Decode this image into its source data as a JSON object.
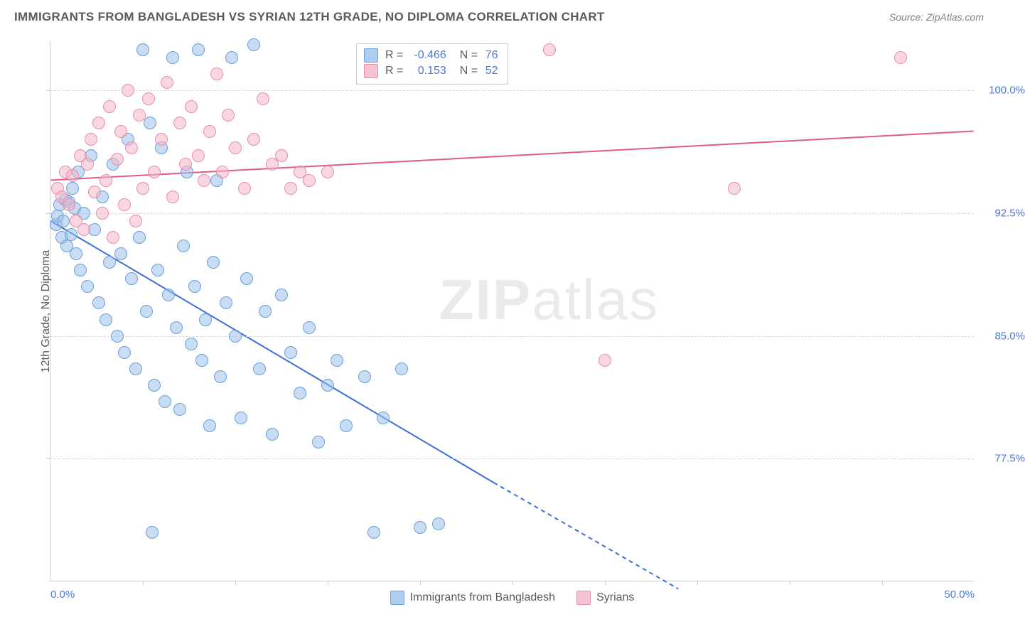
{
  "header": {
    "title": "IMMIGRANTS FROM BANGLADESH VS SYRIAN 12TH GRADE, NO DIPLOMA CORRELATION CHART",
    "source_prefix": "Source: ",
    "source": "ZipAtlas.com"
  },
  "chart": {
    "type": "scatter",
    "y_axis_label": "12th Grade, No Diploma",
    "watermark": "ZIPatlas",
    "xlim": [
      0,
      50
    ],
    "ylim": [
      70,
      103
    ],
    "xticks": [
      0,
      25,
      50
    ],
    "xtick_labels": [
      "0.0%",
      "",
      "50.0%"
    ],
    "xtick_minor": [
      5,
      10,
      15,
      20,
      25,
      30,
      35,
      40,
      45
    ],
    "yticks": [
      77.5,
      85.0,
      92.5,
      100.0
    ],
    "ytick_labels": [
      "77.5%",
      "85.0%",
      "92.5%",
      "100.0%"
    ],
    "background_color": "#ffffff",
    "grid_color": "#d8d8d8",
    "series": [
      {
        "name": "Immigrants from Bangladesh",
        "color_fill": "rgba(155,192,235,0.55)",
        "color_stroke": "#6a9fd8",
        "class": "blue",
        "R": -0.466,
        "N": 76,
        "trend": {
          "x1": 0,
          "y1": 92.0,
          "x2": 24,
          "y2": 76.0,
          "x2_dash": 34,
          "y2_dash": 69.5,
          "color": "#3a6fd8",
          "width": 2
        },
        "points": [
          [
            0.3,
            91.8
          ],
          [
            0.4,
            92.3
          ],
          [
            0.5,
            93.0
          ],
          [
            0.6,
            91.0
          ],
          [
            0.7,
            92.0
          ],
          [
            0.8,
            93.3
          ],
          [
            0.9,
            90.5
          ],
          [
            1.0,
            93.2
          ],
          [
            1.1,
            91.2
          ],
          [
            1.2,
            94.0
          ],
          [
            1.3,
            92.8
          ],
          [
            1.4,
            90.0
          ],
          [
            1.5,
            95.0
          ],
          [
            1.6,
            89.0
          ],
          [
            1.8,
            92.5
          ],
          [
            2.0,
            88.0
          ],
          [
            2.2,
            96.0
          ],
          [
            2.4,
            91.5
          ],
          [
            2.6,
            87.0
          ],
          [
            2.8,
            93.5
          ],
          [
            3.0,
            86.0
          ],
          [
            3.2,
            89.5
          ],
          [
            3.4,
            95.5
          ],
          [
            3.6,
            85.0
          ],
          [
            3.8,
            90.0
          ],
          [
            4.0,
            84.0
          ],
          [
            4.2,
            97.0
          ],
          [
            4.4,
            88.5
          ],
          [
            4.6,
            83.0
          ],
          [
            4.8,
            91.0
          ],
          [
            5.0,
            102.5
          ],
          [
            5.2,
            86.5
          ],
          [
            5.4,
            98.0
          ],
          [
            5.6,
            82.0
          ],
          [
            5.8,
            89.0
          ],
          [
            6.0,
            96.5
          ],
          [
            6.2,
            81.0
          ],
          [
            6.4,
            87.5
          ],
          [
            6.6,
            102.0
          ],
          [
            6.8,
            85.5
          ],
          [
            7.0,
            80.5
          ],
          [
            7.2,
            90.5
          ],
          [
            7.4,
            95.0
          ],
          [
            7.6,
            84.5
          ],
          [
            7.8,
            88.0
          ],
          [
            8.0,
            102.5
          ],
          [
            8.2,
            83.5
          ],
          [
            8.4,
            86.0
          ],
          [
            8.6,
            79.5
          ],
          [
            8.8,
            89.5
          ],
          [
            9.0,
            94.5
          ],
          [
            9.2,
            82.5
          ],
          [
            9.5,
            87.0
          ],
          [
            9.8,
            102.0
          ],
          [
            10.0,
            85.0
          ],
          [
            10.3,
            80.0
          ],
          [
            10.6,
            88.5
          ],
          [
            11.0,
            102.8
          ],
          [
            11.3,
            83.0
          ],
          [
            11.6,
            86.5
          ],
          [
            12.0,
            79.0
          ],
          [
            12.5,
            87.5
          ],
          [
            13.0,
            84.0
          ],
          [
            13.5,
            81.5
          ],
          [
            14.0,
            85.5
          ],
          [
            14.5,
            78.5
          ],
          [
            15.0,
            82.0
          ],
          [
            15.5,
            83.5
          ],
          [
            16.0,
            79.5
          ],
          [
            17.0,
            82.5
          ],
          [
            17.5,
            73.0
          ],
          [
            18.0,
            80.0
          ],
          [
            19.0,
            83.0
          ],
          [
            20.0,
            73.3
          ],
          [
            21.0,
            73.5
          ],
          [
            5.5,
            73.0
          ]
        ]
      },
      {
        "name": "Syrians",
        "color_fill": "rgba(245,180,200,0.55)",
        "color_stroke": "#e58fa8",
        "class": "pink",
        "R": 0.153,
        "N": 52,
        "trend": {
          "x1": 0,
          "y1": 94.5,
          "x2": 50,
          "y2": 97.5,
          "color": "#e05c87",
          "width": 2
        },
        "points": [
          [
            0.4,
            94.0
          ],
          [
            0.6,
            93.5
          ],
          [
            0.8,
            95.0
          ],
          [
            1.0,
            93.0
          ],
          [
            1.2,
            94.8
          ],
          [
            1.4,
            92.0
          ],
          [
            1.6,
            96.0
          ],
          [
            1.8,
            91.5
          ],
          [
            2.0,
            95.5
          ],
          [
            2.2,
            97.0
          ],
          [
            2.4,
            93.8
          ],
          [
            2.6,
            98.0
          ],
          [
            2.8,
            92.5
          ],
          [
            3.0,
            94.5
          ],
          [
            3.2,
            99.0
          ],
          [
            3.4,
            91.0
          ],
          [
            3.6,
            95.8
          ],
          [
            3.8,
            97.5
          ],
          [
            4.0,
            93.0
          ],
          [
            4.2,
            100.0
          ],
          [
            4.4,
            96.5
          ],
          [
            4.6,
            92.0
          ],
          [
            4.8,
            98.5
          ],
          [
            5.0,
            94.0
          ],
          [
            5.3,
            99.5
          ],
          [
            5.6,
            95.0
          ],
          [
            6.0,
            97.0
          ],
          [
            6.3,
            100.5
          ],
          [
            6.6,
            93.5
          ],
          [
            7.0,
            98.0
          ],
          [
            7.3,
            95.5
          ],
          [
            7.6,
            99.0
          ],
          [
            8.0,
            96.0
          ],
          [
            8.3,
            94.5
          ],
          [
            8.6,
            97.5
          ],
          [
            9.0,
            101.0
          ],
          [
            9.3,
            95.0
          ],
          [
            9.6,
            98.5
          ],
          [
            10.0,
            96.5
          ],
          [
            10.5,
            94.0
          ],
          [
            11.0,
            97.0
          ],
          [
            11.5,
            99.5
          ],
          [
            12.0,
            95.5
          ],
          [
            12.5,
            96.0
          ],
          [
            13.0,
            94.0
          ],
          [
            13.5,
            95.0
          ],
          [
            14.0,
            94.5
          ],
          [
            15.0,
            95.0
          ],
          [
            27.0,
            102.5
          ],
          [
            30.0,
            83.5
          ],
          [
            37.0,
            94.0
          ],
          [
            46.0,
            102.0
          ]
        ]
      }
    ],
    "bottom_legend": [
      {
        "class": "blue",
        "label": "Immigrants from Bangladesh"
      },
      {
        "class": "pink",
        "label": "Syrians"
      }
    ]
  }
}
